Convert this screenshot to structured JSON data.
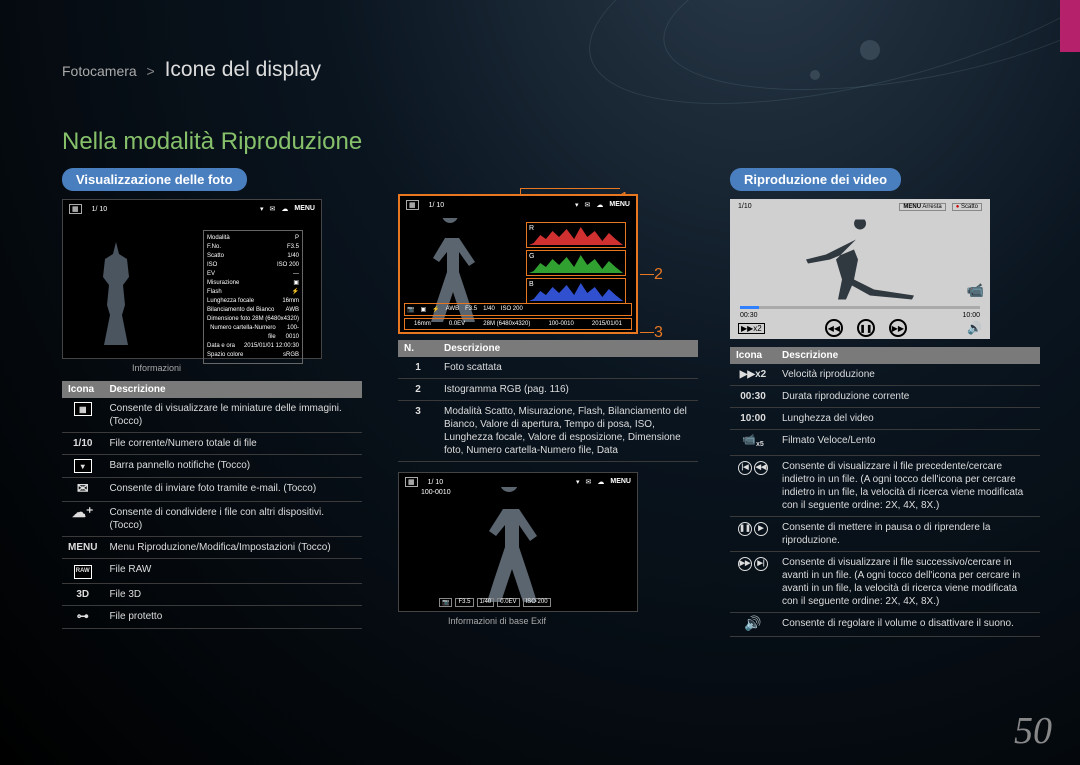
{
  "breadcrumb": {
    "parent": "Fotocamera",
    "sep": ">",
    "title": "Icone del display"
  },
  "section_title": "Nella modalità Riproduzione",
  "page_num": "50",
  "pill_left": "Visualizzazione delle foto",
  "pill_right": "Riproduzione dei video",
  "lcd1": {
    "counter": "1/ 10",
    "menu": "MENU",
    "info_rows": [
      [
        "Modalità",
        "P"
      ],
      [
        "F.No.",
        "F3.5"
      ],
      [
        "Scatto",
        "1/40"
      ],
      [
        "ISO",
        "ISO 200"
      ],
      [
        "EV",
        "—"
      ],
      [
        "Misurazione",
        "▣"
      ],
      [
        "Flash",
        "⚡"
      ],
      [
        "Lunghezza focale",
        "16mm"
      ],
      [
        "Bilanciamento del Bianco",
        "AWB"
      ],
      [
        "Dimensione foto",
        "28M (6480x4320)"
      ],
      [
        "Numero cartella-Numero file",
        "100-0010"
      ],
      [
        "Data e ora",
        "2015/01/01 12:00:30"
      ],
      [
        "Spazio colore",
        "sRGB"
      ]
    ],
    "below": "Informazioni"
  },
  "table1": {
    "headers": [
      "Icona",
      "Descrizione"
    ],
    "rows": [
      {
        "icon": "thumb",
        "text": "Consente di visualizzare le miniature delle immagini. (Tocco)"
      },
      {
        "icon": "1/10",
        "text": "File corrente/Numero totale di file"
      },
      {
        "icon": "chev",
        "text": "Barra pannello notifiche (Tocco)"
      },
      {
        "icon": "mail",
        "text": "Consente di inviare foto tramite e-mail. (Tocco)"
      },
      {
        "icon": "cloud",
        "text": "Consente di condividere i file con altri dispositivi. (Tocco)"
      },
      {
        "icon": "MENU",
        "text": "Menu Riproduzione/Modifica/Impostazioni (Tocco)"
      },
      {
        "icon": "RAW",
        "text": "File RAW"
      },
      {
        "icon": "3D",
        "text": "File 3D"
      },
      {
        "icon": "key",
        "text": "File protetto"
      }
    ]
  },
  "lcd2a": {
    "counter": "1/ 10",
    "menu": "MENU",
    "histo": [
      "R",
      "G",
      "B"
    ],
    "histo_colors": [
      "#d03030",
      "#30a030",
      "#3050d0"
    ],
    "bar2": [
      "📷",
      "▣",
      "⚡",
      "AWB",
      "F3.5",
      "1/40",
      "ISO 200"
    ],
    "bar1": [
      "16mm",
      "0.0EV",
      "28M (6480x4320)",
      "100-0010",
      "2015/01/01"
    ]
  },
  "callouts": [
    "1",
    "2",
    "3"
  ],
  "table2": {
    "headers": [
      "N.",
      "Descrizione"
    ],
    "rows": [
      {
        "n": "1",
        "text": "Foto scattata"
      },
      {
        "n": "2",
        "text": "Istogramma RGB (pag. 116)"
      },
      {
        "n": "3",
        "text": "Modalità Scatto, Misurazione, Flash, Bilanciamento del Bianco, Valore di apertura, Tempo di posa, ISO, Lunghezza focale, Valore di esposizione, Dimensione foto, Numero cartella-Numero file, Data"
      }
    ]
  },
  "lcd2b": {
    "counter": "1/ 10",
    "menu": "MENU",
    "file": "100-0010",
    "bot": [
      "📷",
      "F3.5",
      "1/40",
      "0.0EV",
      "ISO 200"
    ],
    "below": "Informazioni di base Exif"
  },
  "lcd3": {
    "counter": "1/10",
    "menu_l": "MENU",
    "menu_lt": "Arresta",
    "shot": "Scatto",
    "t_left": "00:30",
    "t_right": "10:00",
    "x2": "▶▶x2"
  },
  "table3": {
    "headers": [
      "Icona",
      "Descrizione"
    ],
    "rows": [
      {
        "icon": "▶▶x2",
        "text": "Velocità riproduzione"
      },
      {
        "icon": "00:30",
        "text": "Durata riproduzione corrente"
      },
      {
        "icon": "10:00",
        "text": "Lunghezza del video"
      },
      {
        "icon": "speedcam",
        "text": "Filmato Veloce/Lento"
      },
      {
        "icon": "prev",
        "text": "Consente di visualizzare il file precedente/cercare indietro in un file. (A ogni tocco dell'icona per cercare indietro in un file, la velocità di ricerca viene modificata con il seguente ordine: 2X, 4X, 8X.)"
      },
      {
        "icon": "playpause",
        "text": "Consente di mettere in pausa o di riprendere la riproduzione."
      },
      {
        "icon": "next",
        "text": "Consente di visualizzare il file successivo/cercare in avanti in un file. (A ogni tocco dell'icona per cercare in avanti in un file, la velocità di ricerca viene modificata con il seguente ordine: 2X, 4X, 8X.)"
      },
      {
        "icon": "vol",
        "text": "Consente di regolare il volume o disattivare il suono."
      }
    ]
  }
}
